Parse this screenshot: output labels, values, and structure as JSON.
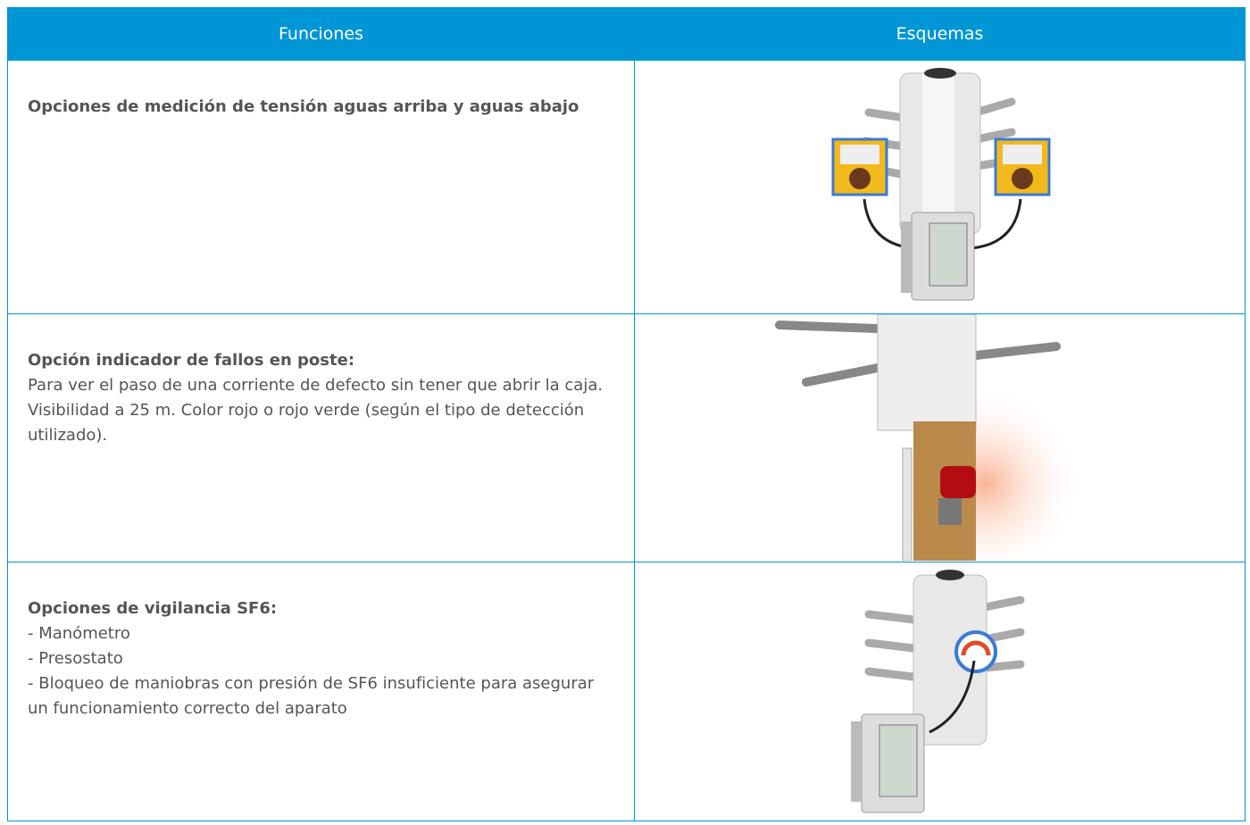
{
  "table": {
    "header": [
      "Funciones",
      "Esquemas"
    ],
    "rows": [
      {
        "title": "Opciones de medición de tensión aguas arriba y aguas abajo",
        "lines": []
      },
      {
        "title": "Opción indicador de fallos en poste:",
        "lines": [
          "Para ver el paso de una corriente de defecto sin tener que abrir la caja. Visibilidad a 25 m. Color rojo o rojo verde (según el tipo de detección utilizado)."
        ]
      },
      {
        "title": "Opciones de vigilancia SF6:",
        "lines": [
          "- Manómetro",
          "- Presostato",
          "- Bloqueo de maniobras con presión de SF6 insuficiente para asegurar un funcionamiento correcto del aparato"
        ]
      }
    ]
  }
}
